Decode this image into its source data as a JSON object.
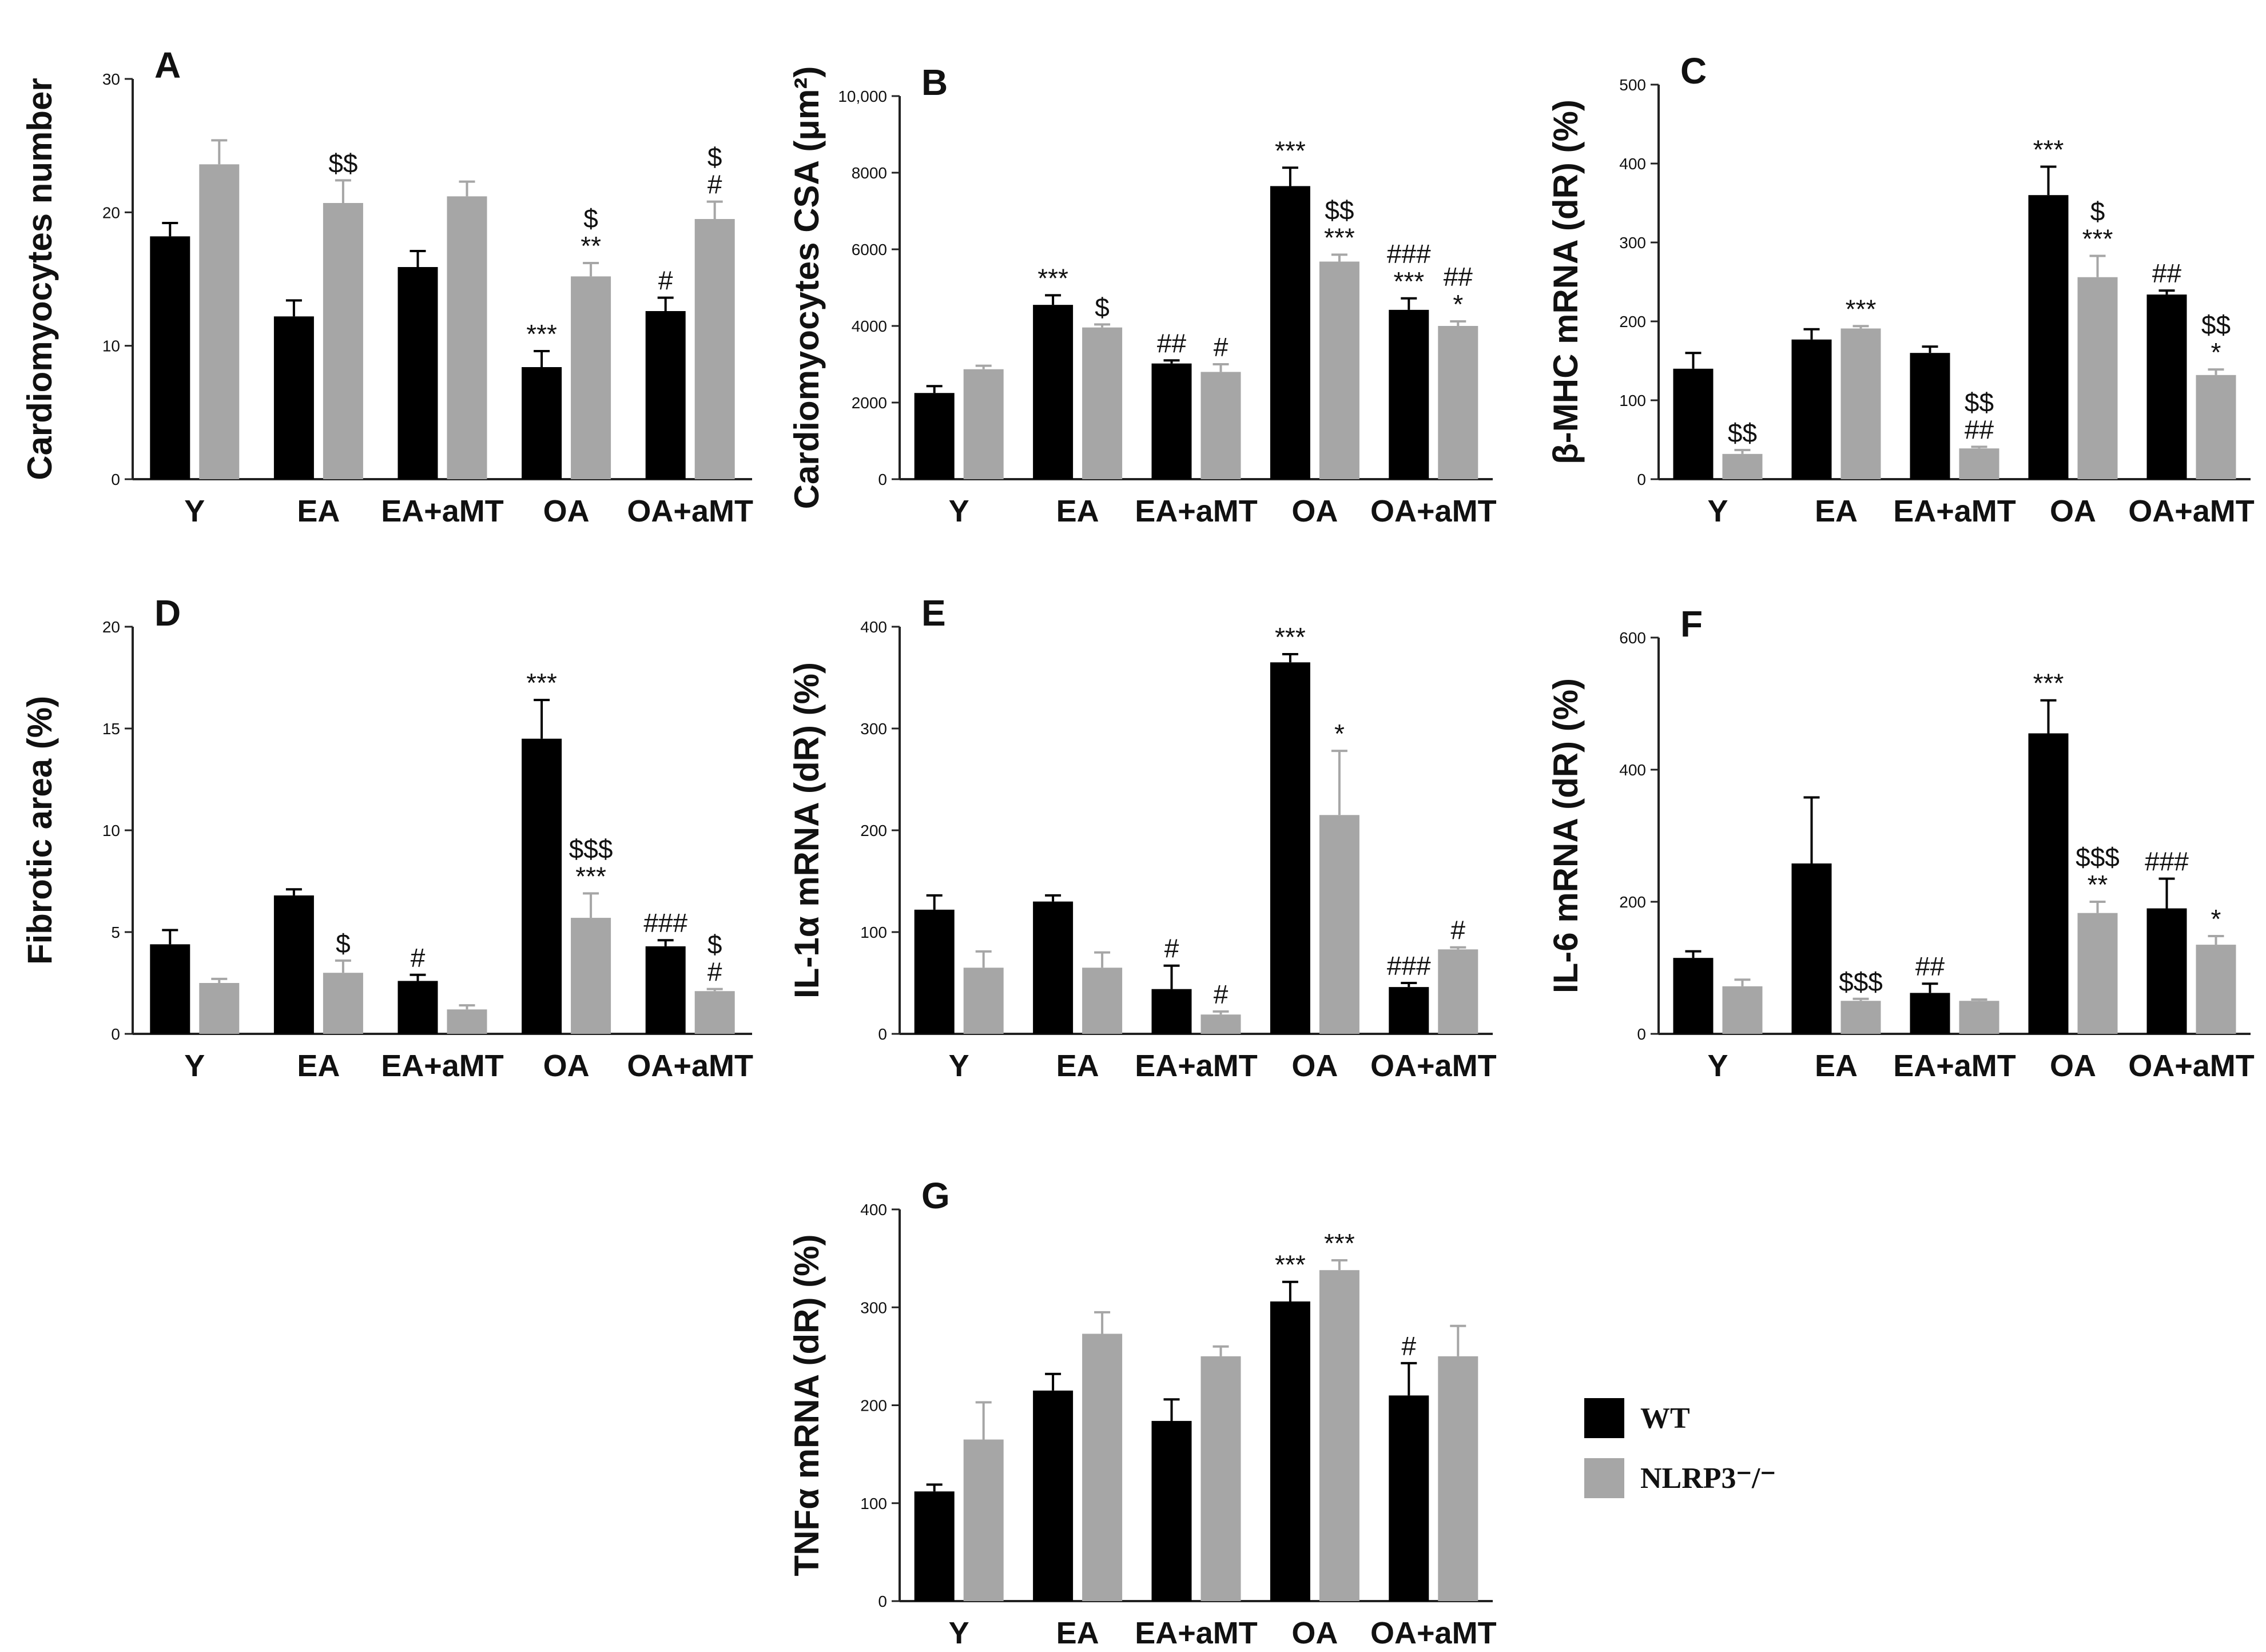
{
  "legend": {
    "items": [
      {
        "name": "WT",
        "color": "#000000"
      },
      {
        "name": "NLRP3⁻/⁻",
        "color": "#a6a6a6"
      }
    ]
  },
  "chart_data": [
    {
      "panel": "A",
      "type": "bar",
      "ylabel": "Cardiomyocytes number",
      "categories": [
        "Y",
        "EA",
        "EA+aMT",
        "OA",
        "OA+aMT"
      ],
      "ylim": [
        0,
        30
      ],
      "yticks": [
        0,
        10,
        20,
        30
      ],
      "ytick_labels": [
        "0",
        "10",
        "20",
        "30"
      ],
      "series": [
        {
          "name": "WT",
          "values": [
            18.2,
            12.2,
            15.9,
            8.4,
            12.6
          ],
          "errors": [
            1.0,
            1.2,
            1.2,
            1.2,
            1.0
          ]
        },
        {
          "name": "NLRP3⁻/⁻",
          "values": [
            23.6,
            20.7,
            21.2,
            15.2,
            19.5
          ],
          "errors": [
            1.8,
            1.7,
            1.1,
            1.0,
            1.3
          ]
        }
      ],
      "annotations": [
        {
          "series": 1,
          "cat": 1,
          "lines": [
            "$$"
          ]
        },
        {
          "series": 0,
          "cat": 3,
          "lines": [
            "***"
          ]
        },
        {
          "series": 1,
          "cat": 3,
          "lines": [
            "$",
            "**"
          ]
        },
        {
          "series": 0,
          "cat": 4,
          "lines": [
            "#"
          ]
        },
        {
          "series": 1,
          "cat": 4,
          "lines": [
            "$",
            "#"
          ]
        }
      ]
    },
    {
      "panel": "B",
      "type": "bar",
      "ylabel": "Cardiomyocytes CSA (μm²)",
      "categories": [
        "Y",
        "EA",
        "EA+aMT",
        "OA",
        "OA+aMT"
      ],
      "ylim": [
        0,
        10000
      ],
      "yticks": [
        0,
        2000,
        4000,
        6000,
        8000,
        10000
      ],
      "ytick_labels": [
        "0",
        "2000",
        "4000",
        "6000",
        "8000",
        "10,000"
      ],
      "series": [
        {
          "name": "WT",
          "values": [
            2250,
            4550,
            3020,
            7650,
            4420
          ],
          "errors": [
            180,
            250,
            80,
            480,
            300
          ]
        },
        {
          "name": "NLRP3⁻/⁻",
          "values": [
            2870,
            3960,
            2800,
            5680,
            4000
          ],
          "errors": [
            90,
            80,
            200,
            180,
            120
          ]
        }
      ],
      "annotations": [
        {
          "series": 0,
          "cat": 1,
          "lines": [
            "***"
          ]
        },
        {
          "series": 1,
          "cat": 1,
          "lines": [
            "$"
          ]
        },
        {
          "series": 0,
          "cat": 2,
          "lines": [
            "##"
          ]
        },
        {
          "series": 1,
          "cat": 2,
          "lines": [
            "#"
          ]
        },
        {
          "series": 0,
          "cat": 3,
          "lines": [
            "***"
          ]
        },
        {
          "series": 1,
          "cat": 3,
          "lines": [
            "$$",
            "***"
          ]
        },
        {
          "series": 0,
          "cat": 4,
          "lines": [
            "###",
            "***"
          ]
        },
        {
          "series": 1,
          "cat": 4,
          "lines": [
            "##",
            "*"
          ]
        }
      ]
    },
    {
      "panel": "C",
      "type": "bar",
      "ylabel": "β-MHC mRNA (dR) (%)",
      "categories": [
        "Y",
        "EA",
        "EA+aMT",
        "OA",
        "OA+aMT"
      ],
      "ylim": [
        0,
        500
      ],
      "yticks": [
        0,
        100,
        200,
        300,
        400,
        500
      ],
      "ytick_labels": [
        "0",
        "100",
        "200",
        "300",
        "400",
        "500"
      ],
      "series": [
        {
          "name": "WT",
          "values": [
            140,
            177,
            160,
            360,
            234
          ],
          "errors": [
            20,
            13,
            8,
            36,
            5
          ]
        },
        {
          "name": "NLRP3⁻/⁻",
          "values": [
            32,
            191,
            39,
            256,
            132
          ],
          "errors": [
            5,
            3,
            2,
            27,
            7
          ]
        }
      ],
      "annotations": [
        {
          "series": 1,
          "cat": 0,
          "lines": [
            "$$"
          ]
        },
        {
          "series": 1,
          "cat": 1,
          "lines": [
            "***"
          ]
        },
        {
          "series": 1,
          "cat": 2,
          "lines": [
            "$$",
            "##"
          ]
        },
        {
          "series": 0,
          "cat": 3,
          "lines": [
            "***"
          ]
        },
        {
          "series": 1,
          "cat": 3,
          "lines": [
            "$",
            "***"
          ]
        },
        {
          "series": 0,
          "cat": 4,
          "lines": [
            "##"
          ]
        },
        {
          "series": 1,
          "cat": 4,
          "lines": [
            "$$",
            "*"
          ]
        }
      ]
    },
    {
      "panel": "D",
      "type": "bar",
      "ylabel": "Fibrotic area (%)",
      "categories": [
        "Y",
        "EA",
        "EA+aMT",
        "OA",
        "OA+aMT"
      ],
      "ylim": [
        0,
        20
      ],
      "yticks": [
        0,
        5,
        10,
        15,
        20
      ],
      "ytick_labels": [
        "0",
        "5",
        "10",
        "15",
        "20"
      ],
      "series": [
        {
          "name": "WT",
          "values": [
            4.4,
            6.8,
            2.6,
            14.5,
            4.3
          ],
          "errors": [
            0.7,
            0.3,
            0.3,
            1.9,
            0.3
          ]
        },
        {
          "name": "NLRP3⁻/⁻",
          "values": [
            2.5,
            3.0,
            1.2,
            5.7,
            2.1
          ],
          "errors": [
            0.2,
            0.6,
            0.2,
            1.2,
            0.1
          ]
        }
      ],
      "annotations": [
        {
          "series": 1,
          "cat": 1,
          "lines": [
            "$"
          ]
        },
        {
          "series": 0,
          "cat": 2,
          "lines": [
            "#"
          ]
        },
        {
          "series": 0,
          "cat": 3,
          "lines": [
            "***"
          ]
        },
        {
          "series": 1,
          "cat": 3,
          "lines": [
            "$$$",
            "***"
          ]
        },
        {
          "series": 0,
          "cat": 4,
          "lines": [
            "###"
          ]
        },
        {
          "series": 1,
          "cat": 4,
          "lines": [
            "$",
            "#"
          ]
        }
      ]
    },
    {
      "panel": "E",
      "type": "bar",
      "ylabel": "IL-1α mRNA (dR) (%)",
      "categories": [
        "Y",
        "EA",
        "EA+aMT",
        "OA",
        "OA+aMT"
      ],
      "ylim": [
        0,
        400
      ],
      "yticks": [
        0,
        100,
        200,
        300,
        400
      ],
      "ytick_labels": [
        "0",
        "100",
        "200",
        "300",
        "400"
      ],
      "series": [
        {
          "name": "WT",
          "values": [
            122,
            130,
            44,
            365,
            46
          ],
          "errors": [
            14,
            6,
            23,
            8,
            4
          ]
        },
        {
          "name": "NLRP3⁻/⁻",
          "values": [
            65,
            65,
            19,
            215,
            83
          ],
          "errors": [
            16,
            15,
            3,
            63,
            2
          ]
        }
      ],
      "annotations": [
        {
          "series": 0,
          "cat": 2,
          "lines": [
            "#"
          ]
        },
        {
          "series": 1,
          "cat": 2,
          "lines": [
            "#"
          ]
        },
        {
          "series": 0,
          "cat": 3,
          "lines": [
            "***"
          ]
        },
        {
          "series": 1,
          "cat": 3,
          "lines": [
            "*"
          ]
        },
        {
          "series": 0,
          "cat": 4,
          "lines": [
            "###"
          ]
        },
        {
          "series": 1,
          "cat": 4,
          "lines": [
            "#"
          ]
        }
      ]
    },
    {
      "panel": "F",
      "type": "bar",
      "ylabel": "IL-6 mRNA (dR) (%)",
      "categories": [
        "Y",
        "EA",
        "EA+aMT",
        "OA",
        "OA+aMT"
      ],
      "ylim": [
        0,
        600
      ],
      "yticks": [
        0,
        200,
        400,
        600
      ],
      "ytick_labels": [
        "0",
        "200",
        "400",
        "600"
      ],
      "series": [
        {
          "name": "WT",
          "values": [
            115,
            258,
            62,
            455,
            190
          ],
          "errors": [
            10,
            100,
            14,
            50,
            45
          ]
        },
        {
          "name": "NLRP3⁻/⁻",
          "values": [
            72,
            50,
            50,
            183,
            135
          ],
          "errors": [
            10,
            3,
            2,
            17,
            13
          ]
        }
      ],
      "annotations": [
        {
          "series": 1,
          "cat": 1,
          "lines": [
            "$$$"
          ]
        },
        {
          "series": 0,
          "cat": 2,
          "lines": [
            "##"
          ]
        },
        {
          "series": 0,
          "cat": 3,
          "lines": [
            "***"
          ]
        },
        {
          "series": 1,
          "cat": 3,
          "lines": [
            "$$$",
            "**"
          ]
        },
        {
          "series": 0,
          "cat": 4,
          "lines": [
            "###"
          ]
        },
        {
          "series": 1,
          "cat": 4,
          "lines": [
            "*"
          ]
        }
      ]
    },
    {
      "panel": "G",
      "type": "bar",
      "ylabel": "TNFα mRNA (dR) (%)",
      "categories": [
        "Y",
        "EA",
        "EA+aMT",
        "OA",
        "OA+aMT"
      ],
      "ylim": [
        0,
        400
      ],
      "yticks": [
        0,
        100,
        200,
        300,
        400
      ],
      "ytick_labels": [
        "0",
        "100",
        "200",
        "300",
        "400"
      ],
      "series": [
        {
          "name": "WT",
          "values": [
            112,
            215,
            184,
            306,
            210
          ],
          "errors": [
            7,
            17,
            22,
            20,
            33
          ]
        },
        {
          "name": "NLRP3⁻/⁻",
          "values": [
            165,
            273,
            250,
            338,
            250
          ],
          "errors": [
            38,
            22,
            10,
            10,
            31
          ]
        }
      ],
      "annotations": [
        {
          "series": 0,
          "cat": 3,
          "lines": [
            "***"
          ]
        },
        {
          "series": 1,
          "cat": 3,
          "lines": [
            "***"
          ]
        },
        {
          "series": 0,
          "cat": 4,
          "lines": [
            "#"
          ]
        }
      ]
    }
  ]
}
